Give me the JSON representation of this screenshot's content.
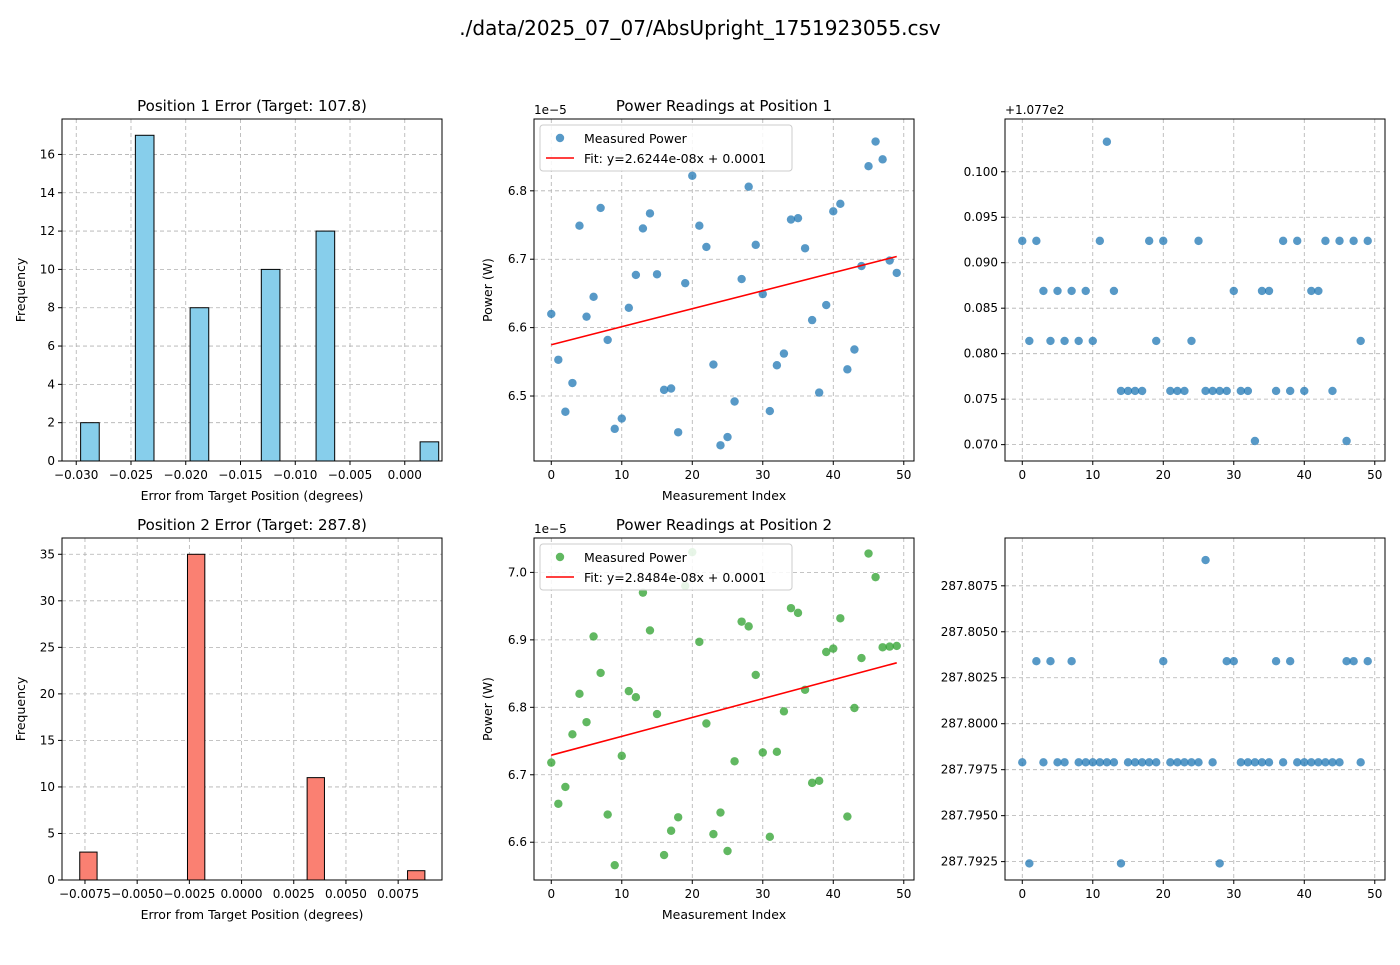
{
  "suptitle": "./data/2025_07_07/AbsUpright_1751923055.csv",
  "chart_data": [
    {
      "type": "bar",
      "subtype": "histogram",
      "title": "Position 1 Error (Target: 107.8)",
      "xlabel": "Error from Target Position (degrees)",
      "ylabel": "Frequency",
      "color": "#87ceeb",
      "xlim": [
        -0.0313,
        0.0034
      ],
      "ylim": [
        0,
        17.85
      ],
      "xticks": [
        -0.03,
        -0.025,
        -0.02,
        -0.015,
        -0.01,
        -0.005,
        0.0
      ],
      "xtick_labels": [
        "−0.030",
        "−0.025",
        "−0.020",
        "−0.015",
        "−0.010",
        "−0.005",
        "0.000"
      ],
      "yticks": [
        0,
        2,
        4,
        6,
        8,
        10,
        12,
        14,
        16
      ],
      "ytick_labels": [
        "0",
        "2",
        "4",
        "6",
        "8",
        "10",
        "12",
        "14",
        "16"
      ],
      "bin_width": 0.0017,
      "bins": [
        {
          "start": -0.0296,
          "count": 2
        },
        {
          "start": -0.0246,
          "count": 17
        },
        {
          "start": -0.0196,
          "count": 8
        },
        {
          "start": -0.0131,
          "count": 10
        },
        {
          "start": -0.0081,
          "count": 12
        },
        {
          "start": 0.0014,
          "count": 1
        }
      ]
    },
    {
      "type": "scatter",
      "title": "Power Readings at Position 1",
      "xlabel": "Measurement Index",
      "ylabel": "Power (W)",
      "offset_text": "1e−5",
      "color": "#1f77b4",
      "xlim": [
        -2.45,
        51.45
      ],
      "ylim": [
        6.405,
        6.905
      ],
      "xticks": [
        0,
        10,
        20,
        30,
        40,
        50
      ],
      "xtick_labels": [
        "0",
        "10",
        "20",
        "30",
        "40",
        "50"
      ],
      "yticks": [
        6.5,
        6.6,
        6.7,
        6.8
      ],
      "ytick_labels": [
        "6.5",
        "6.6",
        "6.7",
        "6.8"
      ],
      "legend_position": "upper left",
      "series": [
        {
          "name": "Measured Power",
          "x": [
            0,
            1,
            2,
            3,
            4,
            5,
            6,
            7,
            8,
            9,
            10,
            11,
            12,
            13,
            14,
            15,
            16,
            17,
            18,
            19,
            20,
            21,
            22,
            23,
            24,
            25,
            26,
            27,
            28,
            29,
            30,
            31,
            32,
            33,
            34,
            35,
            36,
            37,
            38,
            39,
            40,
            41,
            42,
            43,
            44,
            45,
            46,
            47,
            48,
            49
          ],
          "y": [
            6.62,
            6.553,
            6.477,
            6.519,
            6.749,
            6.616,
            6.645,
            6.775,
            6.582,
            6.452,
            6.467,
            6.629,
            6.677,
            6.745,
            6.767,
            6.678,
            6.509,
            6.511,
            6.447,
            6.665,
            6.822,
            6.749,
            6.718,
            6.546,
            6.428,
            6.44,
            6.492,
            6.671,
            6.806,
            6.721,
            6.649,
            6.478,
            6.545,
            6.562,
            6.758,
            6.76,
            6.716,
            6.611,
            6.505,
            6.633,
            6.77,
            6.781,
            6.539,
            6.568,
            6.69,
            6.836,
            6.872,
            6.846,
            6.698,
            6.68
          ]
        },
        {
          "name": "Fit: y=2.6244e-08x + 0.0001",
          "x": [
            0,
            49
          ],
          "y": [
            6.575,
            6.704
          ],
          "color": "#ff0000"
        }
      ]
    },
    {
      "type": "scatter",
      "title": "",
      "xlabel": "",
      "ylabel": "",
      "offset_text": "+1.077e2",
      "color": "#1f77b4",
      "xlim": [
        -2.45,
        51.45
      ],
      "ylim": [
        0.0682,
        0.1058
      ],
      "xticks": [
        0,
        10,
        20,
        30,
        40,
        50
      ],
      "xtick_labels": [
        "0",
        "10",
        "20",
        "30",
        "40",
        "50"
      ],
      "yticks": [
        0.07,
        0.075,
        0.08,
        0.085,
        0.09,
        0.095,
        0.1
      ],
      "ytick_labels": [
        "0.070",
        "0.075",
        "0.080",
        "0.085",
        "0.090",
        "0.095",
        "0.100"
      ],
      "series": [
        {
          "name": "",
          "x": [
            0,
            1,
            2,
            3,
            4,
            5,
            6,
            7,
            8,
            9,
            10,
            11,
            12,
            13,
            14,
            15,
            16,
            17,
            18,
            19,
            20,
            21,
            22,
            23,
            24,
            25,
            26,
            27,
            28,
            29,
            30,
            31,
            32,
            33,
            34,
            35,
            36,
            37,
            38,
            39,
            40,
            41,
            42,
            43,
            44,
            45,
            46,
            47,
            48,
            49
          ],
          "y": [
            0.0924,
            0.0814,
            0.0924,
            0.0869,
            0.0814,
            0.0869,
            0.0814,
            0.0869,
            0.0814,
            0.0869,
            0.0814,
            0.0924,
            0.1033,
            0.0869,
            0.0759,
            0.0759,
            0.0759,
            0.0759,
            0.0924,
            0.0814,
            0.0924,
            0.0759,
            0.0759,
            0.0759,
            0.0814,
            0.0924,
            0.0759,
            0.0759,
            0.0759,
            0.0759,
            0.0869,
            0.0759,
            0.0759,
            0.0704,
            0.0869,
            0.0869,
            0.0759,
            0.0924,
            0.0759,
            0.0924,
            0.0759,
            0.0869,
            0.0869,
            0.0924,
            0.0759,
            0.0924,
            0.0704,
            0.0924,
            0.0814,
            0.0924
          ]
        }
      ]
    },
    {
      "type": "bar",
      "subtype": "histogram",
      "title": "Position 2 Error (Target: 287.8)",
      "xlabel": "Error from Target Position (degrees)",
      "ylabel": "Frequency",
      "color": "#fa8072",
      "xlim": [
        -0.0086,
        0.0096
      ],
      "ylim": [
        0,
        36.75
      ],
      "xticks": [
        -0.0075,
        -0.005,
        -0.0025,
        0.0,
        0.0025,
        0.005,
        0.0075
      ],
      "xtick_labels": [
        "−0.0075",
        "−0.0050",
        "−0.0025",
        "0.0000",
        "0.0025",
        "0.0050",
        "0.0075"
      ],
      "yticks": [
        0,
        5,
        10,
        15,
        20,
        25,
        30,
        35
      ],
      "ytick_labels": [
        "0",
        "5",
        "10",
        "15",
        "20",
        "25",
        "30",
        "35"
      ],
      "bin_width": 0.00083,
      "bins": [
        {
          "start": -0.00775,
          "count": 3
        },
        {
          "start": -0.00259,
          "count": 35
        },
        {
          "start": 0.00314,
          "count": 11
        },
        {
          "start": 0.00795,
          "count": 1
        }
      ]
    },
    {
      "type": "scatter",
      "title": "Power Readings at Position 2",
      "xlabel": "Measurement Index",
      "ylabel": "Power (W)",
      "offset_text": "1e−5",
      "color": "#2ca02c",
      "xlim": [
        -2.45,
        51.45
      ],
      "ylim": [
        6.544,
        7.051
      ],
      "xticks": [
        0,
        10,
        20,
        30,
        40,
        50
      ],
      "xtick_labels": [
        "0",
        "10",
        "20",
        "30",
        "40",
        "50"
      ],
      "yticks": [
        6.6,
        6.7,
        6.8,
        6.9,
        7.0
      ],
      "ytick_labels": [
        "6.6",
        "6.7",
        "6.8",
        "6.9",
        "7.0"
      ],
      "legend_position": "upper left",
      "series": [
        {
          "name": "Measured Power",
          "x": [
            0,
            1,
            2,
            3,
            4,
            5,
            6,
            7,
            8,
            9,
            10,
            11,
            12,
            13,
            14,
            15,
            16,
            17,
            18,
            19,
            20,
            21,
            22,
            23,
            24,
            25,
            26,
            27,
            28,
            29,
            30,
            31,
            32,
            33,
            34,
            35,
            36,
            37,
            38,
            39,
            40,
            41,
            42,
            43,
            44,
            45,
            46,
            47,
            48,
            49
          ],
          "y": [
            6.718,
            6.657,
            6.682,
            6.76,
            6.82,
            6.778,
            6.905,
            6.851,
            6.641,
            6.566,
            6.728,
            6.824,
            6.815,
            6.97,
            6.914,
            6.79,
            6.581,
            6.617,
            6.637,
            6.98,
            7.03,
            6.897,
            6.776,
            6.612,
            6.644,
            6.587,
            6.72,
            6.927,
            6.92,
            6.848,
            6.733,
            6.608,
            6.734,
            6.794,
            6.947,
            6.94,
            6.826,
            6.688,
            6.691,
            6.882,
            6.887,
            6.932,
            6.638,
            6.799,
            6.873,
            7.028,
            6.993,
            6.889,
            6.89,
            6.891
          ]
        },
        {
          "name": "Fit: y=2.8484e-08x + 0.0001",
          "x": [
            0,
            49
          ],
          "y": [
            6.729,
            6.866
          ],
          "color": "#ff0000"
        }
      ]
    },
    {
      "type": "scatter",
      "title": "",
      "xlabel": "",
      "ylabel": "",
      "color": "#1f77b4",
      "xlim": [
        -2.45,
        51.45
      ],
      "ylim": [
        287.7915,
        287.8101
      ],
      "xticks": [
        0,
        10,
        20,
        30,
        40,
        50
      ],
      "xtick_labels": [
        "0",
        "10",
        "20",
        "30",
        "40",
        "50"
      ],
      "yticks": [
        287.7925,
        287.795,
        287.7975,
        287.8,
        287.8025,
        287.805,
        287.8075
      ],
      "ytick_labels": [
        "287.7925",
        "287.7950",
        "287.7975",
        "287.8000",
        "287.8025",
        "287.8050",
        "287.8075"
      ],
      "series": [
        {
          "name": "",
          "x": [
            0,
            1,
            2,
            3,
            4,
            5,
            6,
            7,
            8,
            9,
            10,
            11,
            12,
            13,
            14,
            15,
            16,
            17,
            18,
            19,
            20,
            21,
            22,
            23,
            24,
            25,
            26,
            27,
            28,
            29,
            30,
            31,
            32,
            33,
            34,
            35,
            36,
            37,
            38,
            39,
            40,
            41,
            42,
            43,
            44,
            45,
            46,
            47,
            48,
            49
          ],
          "y": [
            287.7979,
            287.7924,
            287.8034,
            287.7979,
            287.8034,
            287.7979,
            287.7979,
            287.8034,
            287.7979,
            287.7979,
            287.7979,
            287.7979,
            287.7979,
            287.7979,
            287.7924,
            287.7979,
            287.7979,
            287.7979,
            287.7979,
            287.7979,
            287.8034,
            287.7979,
            287.7979,
            287.7979,
            287.7979,
            287.7979,
            287.8089,
            287.7979,
            287.7924,
            287.8034,
            287.8034,
            287.7979,
            287.7979,
            287.7979,
            287.7979,
            287.7979,
            287.8034,
            287.7979,
            287.8034,
            287.7979,
            287.7979,
            287.7979,
            287.7979,
            287.7979,
            287.7979,
            287.7979,
            287.8034,
            287.8034,
            287.7979,
            287.8034
          ]
        }
      ]
    }
  ]
}
